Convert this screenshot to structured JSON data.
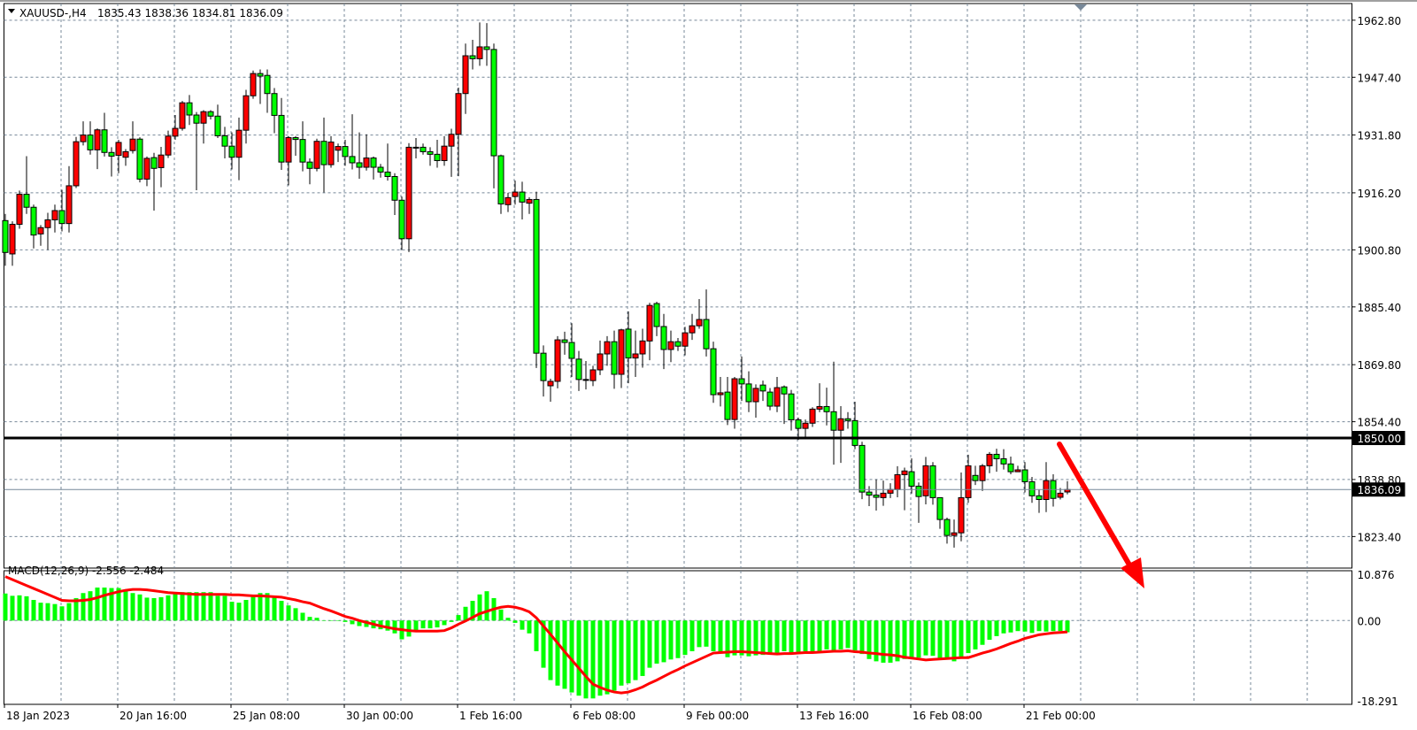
{
  "header": {
    "symbol": "XAUUSD-,H4",
    "ohlc": "1835.43 1838.36 1834.81 1836.09"
  },
  "indicator": {
    "label": "MACD(12,26,9) -2.556 -2.484"
  },
  "colors": {
    "bull_candle": "#ff0000",
    "bear_candle": "#00ff00",
    "macd_histogram": "#00ff00",
    "signal_line": "#ff0000",
    "grid": "#778899",
    "level_line": "#000000",
    "bid_line": "#778899",
    "arrow": "#ff0000"
  },
  "chart_data": [
    {
      "type": "candlestick",
      "symbol": "XAUUSD-",
      "timeframe": "H4",
      "grid": true,
      "y_ticks": [
        "1962.80",
        "1947.40",
        "1931.80",
        "1916.20",
        "1900.80",
        "1885.40",
        "1869.80",
        "1854.40",
        "1838.80",
        "1823.40"
      ],
      "x_ticks": [
        "18 Jan 2023",
        "20 Jan 16:00",
        "25 Jan 08:00",
        "30 Jan 00:00",
        "1 Feb 16:00",
        "6 Feb 08:00",
        "9 Feb 00:00",
        "13 Feb 16:00",
        "16 Feb 08:00",
        "21 Feb 00:00"
      ],
      "horizontal_line": {
        "value": 1850.0,
        "label": "1850.00"
      },
      "bid_line": {
        "value": 1836.09,
        "label": "1836.09"
      },
      "annotation": "red downward arrow starting near 1850 level after last candle",
      "ohlc": [
        [
          1908.7,
          1910.5,
          1896.5,
          1900.1
        ],
        [
          1899.7,
          1908.5,
          1896.5,
          1907.7
        ],
        [
          1907.7,
          1916.8,
          1906.5,
          1915.8
        ],
        [
          1915.8,
          1926.1,
          1910.5,
          1912.3
        ],
        [
          1912.3,
          1913.0,
          1901.2,
          1904.8
        ],
        [
          1905.1,
          1907.5,
          1901.9,
          1906.8
        ],
        [
          1906.8,
          1910.8,
          1900.8,
          1908.9
        ],
        [
          1908.9,
          1913.0,
          1905.5,
          1911.4
        ],
        [
          1911.4,
          1917.0,
          1905.8,
          1907.9
        ],
        [
          1907.9,
          1923.4,
          1905.5,
          1918.1
        ],
        [
          1918.1,
          1931.3,
          1917.5,
          1930.0
        ],
        [
          1930.0,
          1935.5,
          1929.0,
          1931.8
        ],
        [
          1931.8,
          1935.5,
          1926.5,
          1927.8
        ],
        [
          1927.8,
          1933.6,
          1922.6,
          1933.2
        ],
        [
          1933.2,
          1937.8,
          1926.0,
          1927.1
        ],
        [
          1927.1,
          1928.5,
          1920.6,
          1926.1
        ],
        [
          1926.3,
          1930.5,
          1921.5,
          1929.8
        ],
        [
          1925.8,
          1928.0,
          1923.5,
          1927.3
        ],
        [
          1927.6,
          1935.5,
          1926.8,
          1930.7
        ],
        [
          1930.7,
          1931.2,
          1919.0,
          1919.9
        ],
        [
          1919.9,
          1926.0,
          1918.0,
          1925.5
        ],
        [
          1925.7,
          1927.0,
          1911.4,
          1922.8
        ],
        [
          1923.0,
          1928.6,
          1917.7,
          1926.4
        ],
        [
          1926.4,
          1933.0,
          1925.6,
          1931.5
        ],
        [
          1931.5,
          1937.2,
          1930.5,
          1933.6
        ],
        [
          1933.6,
          1941.0,
          1933.0,
          1940.5
        ],
        [
          1940.5,
          1942.6,
          1934.5,
          1937.2
        ],
        [
          1937.2,
          1938.0,
          1916.9,
          1935.0
        ],
        [
          1935.0,
          1938.5,
          1929.5,
          1938.1
        ],
        [
          1938.1,
          1938.5,
          1936.0,
          1936.9
        ],
        [
          1936.9,
          1940.0,
          1931.0,
          1931.6
        ],
        [
          1931.6,
          1934.0,
          1925.5,
          1928.8
        ],
        [
          1928.8,
          1932.5,
          1922.5,
          1925.8
        ],
        [
          1925.8,
          1936.5,
          1919.6,
          1933.1
        ],
        [
          1933.1,
          1944.0,
          1929.5,
          1942.4
        ],
        [
          1942.4,
          1949.2,
          1941.6,
          1948.4
        ],
        [
          1948.4,
          1949.5,
          1940.2,
          1947.7
        ],
        [
          1947.9,
          1949.5,
          1937.8,
          1943.0
        ],
        [
          1943.0,
          1944.5,
          1932.3,
          1937.1
        ],
        [
          1937.1,
          1941.8,
          1922.4,
          1924.5
        ],
        [
          1924.5,
          1931.5,
          1918.2,
          1931.1
        ],
        [
          1931.1,
          1931.5,
          1926.2,
          1930.6
        ],
        [
          1930.6,
          1935.5,
          1922.0,
          1924.5
        ],
        [
          1924.5,
          1925.5,
          1918.5,
          1922.8
        ],
        [
          1922.8,
          1930.8,
          1922.0,
          1930.1
        ],
        [
          1930.1,
          1936.5,
          1916.3,
          1923.8
        ],
        [
          1923.8,
          1931.5,
          1923.0,
          1929.9
        ],
        [
          1927.7,
          1929.5,
          1924.5,
          1928.7
        ],
        [
          1928.7,
          1930.5,
          1923.5,
          1926.0
        ],
        [
          1926.0,
          1937.4,
          1922.5,
          1924.3
        ],
        [
          1924.3,
          1932.5,
          1920.0,
          1923.1
        ],
        [
          1923.1,
          1932.0,
          1922.2,
          1925.6
        ],
        [
          1925.6,
          1926.0,
          1919.8,
          1923.1
        ],
        [
          1923.1,
          1924.0,
          1920.3,
          1921.8
        ],
        [
          1921.8,
          1929.5,
          1919.5,
          1920.6
        ],
        [
          1920.6,
          1921.5,
          1910.2,
          1914.2
        ],
        [
          1914.2,
          1915.2,
          1900.8,
          1903.8
        ],
        [
          1903.8,
          1929.6,
          1900.2,
          1928.5
        ],
        [
          1928.5,
          1931.0,
          1925.5,
          1928.5
        ],
        [
          1928.5,
          1929.5,
          1926.5,
          1927.3
        ],
        [
          1927.3,
          1928.5,
          1923.5,
          1926.6
        ],
        [
          1926.6,
          1930.5,
          1923.0,
          1924.9
        ],
        [
          1924.9,
          1931.5,
          1923.5,
          1928.8
        ],
        [
          1928.8,
          1933.5,
          1920.5,
          1932.0
        ],
        [
          1932.0,
          1944.6,
          1920.7,
          1943.0
        ],
        [
          1943.0,
          1956.5,
          1937.5,
          1953.2
        ],
        [
          1953.2,
          1957.5,
          1949.5,
          1952.4
        ],
        [
          1952.4,
          1962.2,
          1950.5,
          1955.6
        ],
        [
          1955.6,
          1962.0,
          1950.5,
          1954.9
        ],
        [
          1954.9,
          1956.5,
          1917.4,
          1926.2
        ],
        [
          1926.2,
          1926.5,
          1910.5,
          1913.2
        ],
        [
          1913.0,
          1916.2,
          1911.0,
          1914.9
        ],
        [
          1915.2,
          1919.5,
          1913.0,
          1916.4
        ],
        [
          1916.4,
          1919.2,
          1909.0,
          1913.7
        ],
        [
          1913.4,
          1915.0,
          1910.5,
          1914.4
        ],
        [
          1914.4,
          1916.5,
          1868.9,
          1872.9
        ],
        [
          1872.9,
          1875.0,
          1861.2,
          1865.5
        ],
        [
          1864.1,
          1866.0,
          1859.8,
          1865.3
        ],
        [
          1865.3,
          1877.5,
          1863.4,
          1876.5
        ],
        [
          1876.5,
          1878.7,
          1872.5,
          1875.8
        ],
        [
          1875.8,
          1881.0,
          1866.5,
          1871.5
        ],
        [
          1871.3,
          1873.5,
          1862.7,
          1865.8
        ],
        [
          1865.8,
          1870.8,
          1863.1,
          1865.8
        ],
        [
          1865.5,
          1869.5,
          1864.0,
          1868.4
        ],
        [
          1868.4,
          1876.3,
          1867.0,
          1872.7
        ],
        [
          1872.7,
          1877.5,
          1869.5,
          1876.0
        ],
        [
          1876.0,
          1879.0,
          1863.3,
          1867.2
        ],
        [
          1867.2,
          1879.5,
          1863.5,
          1879.2
        ],
        [
          1879.4,
          1884.2,
          1864.8,
          1871.6
        ],
        [
          1871.6,
          1879.0,
          1866.5,
          1872.7
        ],
        [
          1872.7,
          1879.5,
          1869.0,
          1876.2
        ],
        [
          1876.2,
          1886.5,
          1871.0,
          1885.8
        ],
        [
          1886.3,
          1886.8,
          1877.5,
          1880.1
        ],
        [
          1880.1,
          1883.5,
          1868.6,
          1873.9
        ],
        [
          1873.9,
          1879.0,
          1870.5,
          1876.0
        ],
        [
          1876.0,
          1877.0,
          1873.5,
          1874.8
        ],
        [
          1874.8,
          1880.0,
          1872.3,
          1878.4
        ],
        [
          1878.4,
          1883.5,
          1876.5,
          1880.3
        ],
        [
          1880.3,
          1887.5,
          1879.5,
          1882.0
        ],
        [
          1882.0,
          1890.1,
          1872.0,
          1874.1
        ],
        [
          1874.1,
          1876.0,
          1859.5,
          1861.7
        ],
        [
          1861.7,
          1866.5,
          1858.5,
          1862.2
        ],
        [
          1862.4,
          1866.5,
          1853.5,
          1855.0
        ],
        [
          1855.0,
          1866.5,
          1852.5,
          1866.0
        ],
        [
          1866.0,
          1872.0,
          1860.0,
          1864.6
        ],
        [
          1864.6,
          1868.0,
          1857.0,
          1859.8
        ],
        [
          1859.8,
          1864.5,
          1855.5,
          1863.4
        ],
        [
          1864.3,
          1865.5,
          1860.0,
          1862.7
        ],
        [
          1862.4,
          1863.5,
          1857.5,
          1858.6
        ],
        [
          1858.6,
          1866.5,
          1857.0,
          1863.6
        ],
        [
          1863.8,
          1864.2,
          1853.8,
          1861.9
        ],
        [
          1861.9,
          1863.0,
          1852.0,
          1854.9
        ],
        [
          1854.9,
          1855.5,
          1849.5,
          1852.6
        ],
        [
          1852.6,
          1855.0,
          1850.3,
          1854.0
        ],
        [
          1854.0,
          1858.3,
          1853.0,
          1857.8
        ],
        [
          1857.8,
          1864.8,
          1857.0,
          1858.5
        ],
        [
          1858.5,
          1863.6,
          1853.4,
          1857.1
        ],
        [
          1857.1,
          1870.6,
          1842.8,
          1852.1
        ],
        [
          1852.1,
          1858.6,
          1843.3,
          1855.2
        ],
        [
          1855.2,
          1857.0,
          1852.5,
          1854.7
        ],
        [
          1854.7,
          1859.8,
          1847.0,
          1848.0
        ],
        [
          1848.0,
          1849.0,
          1833.5,
          1835.4
        ],
        [
          1835.4,
          1837.0,
          1831.6,
          1834.6
        ],
        [
          1834.6,
          1838.8,
          1830.4,
          1834.0
        ],
        [
          1833.9,
          1838.5,
          1831.7,
          1835.1
        ],
        [
          1835.1,
          1837.8,
          1833.8,
          1836.1
        ],
        [
          1836.1,
          1842.4,
          1834.0,
          1840.1
        ],
        [
          1840.1,
          1842.0,
          1830.5,
          1841.1
        ],
        [
          1840.9,
          1844.5,
          1835.0,
          1837.0
        ],
        [
          1837.0,
          1838.0,
          1827.1,
          1834.2
        ],
        [
          1834.4,
          1844.9,
          1832.1,
          1842.5
        ],
        [
          1842.5,
          1843.5,
          1832.0,
          1833.9
        ],
        [
          1833.9,
          1834.0,
          1825.5,
          1828.0
        ],
        [
          1828.0,
          1828.5,
          1821.5,
          1823.7
        ],
        [
          1823.7,
          1828.0,
          1820.4,
          1824.4
        ],
        [
          1824.4,
          1840.7,
          1822.1,
          1833.9
        ],
        [
          1833.9,
          1845.5,
          1832.5,
          1842.5
        ],
        [
          1839.9,
          1842.5,
          1837.3,
          1838.5
        ],
        [
          1838.5,
          1843.0,
          1835.7,
          1842.5
        ],
        [
          1842.5,
          1846.2,
          1840.5,
          1845.6
        ],
        [
          1845.6,
          1847.1,
          1840.9,
          1844.4
        ],
        [
          1844.4,
          1847.0,
          1841.5,
          1843.0
        ],
        [
          1843.0,
          1845.0,
          1840.2,
          1840.9
        ],
        [
          1840.9,
          1842.5,
          1840.9,
          1841.4
        ],
        [
          1841.4,
          1843.5,
          1835.3,
          1838.2
        ],
        [
          1838.2,
          1839.5,
          1832.5,
          1834.4
        ],
        [
          1834.4,
          1836.0,
          1829.8,
          1833.4
        ],
        [
          1833.4,
          1843.5,
          1830.0,
          1838.5
        ],
        [
          1838.5,
          1840.2,
          1831.5,
          1833.7
        ],
        [
          1834.0,
          1836.5,
          1833.4,
          1835.1
        ],
        [
          1835.43,
          1838.36,
          1834.81,
          1836.09
        ]
      ]
    },
    {
      "type": "bar+line",
      "name": "MACD(12,26,9)",
      "y_ticks": [
        "10.876",
        "0.00",
        "-18.291"
      ],
      "ylim": [
        -18.291,
        10.876
      ],
      "macd": [
        5.9,
        5.4,
        5.5,
        5.3,
        4.5,
        3.9,
        3.8,
        3.6,
        3.1,
        3.8,
        4.9,
        6.0,
        6.4,
        7.2,
        7.2,
        7.1,
        7.1,
        6.7,
        6.0,
        5.7,
        5.0,
        4.9,
        5.1,
        5.5,
        6.2,
        6.2,
        6.2,
        6.2,
        6.2,
        6.2,
        5.4,
        5.4,
        4.1,
        3.9,
        4.5,
        5.2,
        6.0,
        6.0,
        5.2,
        4.3,
        3.3,
        2.7,
        1.7,
        0.8,
        0.6,
        0.05,
        0,
        -0.1,
        -0.3,
        -0.8,
        -1.2,
        -1.4,
        -1.7,
        -1.9,
        -2.2,
        -2.8,
        -4.1,
        -3.5,
        -2.2,
        -1.7,
        -1.7,
        -1.5,
        -1.0,
        -0.3,
        1.2,
        3.0,
        4.3,
        5.7,
        6.4,
        4.9,
        2.4,
        0.6,
        -0.5,
        -2.0,
        -2.8,
        -6.7,
        -10.3,
        -13.0,
        -14.2,
        -14.9,
        -15.7,
        -16.4,
        -17.0,
        -17.0,
        -16.4,
        -16.1,
        -15.3,
        -14.2,
        -13.7,
        -13.0,
        -12.1,
        -10.3,
        -9.4,
        -9.1,
        -8.5,
        -8.2,
        -7.5,
        -6.7,
        -5.8,
        -5.7,
        -6.7,
        -7.1,
        -8.0,
        -7.6,
        -7.6,
        -7.8,
        -7.6,
        -7.5,
        -7.1,
        -7.2,
        -6.7,
        -7.0,
        -7.0,
        -6.7,
        -6.8,
        -6.7,
        -6.3,
        -6.5,
        -6.3,
        -6.0,
        -6.5,
        -7.3,
        -8.4,
        -8.9,
        -9.2,
        -9.2,
        -8.9,
        -8.4,
        -8.1,
        -8.1,
        -7.6,
        -7.7,
        -8.3,
        -8.4,
        -8.9,
        -8.3,
        -7.1,
        -6.3,
        -5.3,
        -4.2,
        -3.4,
        -2.8,
        -2.6,
        -2.3,
        -2.4,
        -2.7,
        -2.3,
        -2.4,
        -2.3,
        -2.3,
        -2.556
      ],
      "signal": [
        9.6,
        8.95,
        8.3,
        7.65,
        7.0,
        6.35,
        5.7,
        5.05,
        4.4,
        4.3,
        4.3,
        4.4,
        4.6,
        5.0,
        5.5,
        5.9,
        6.3,
        6.6,
        6.8,
        6.8,
        6.7,
        6.5,
        6.3,
        6.1,
        6.0,
        5.9,
        5.8,
        5.7,
        5.7,
        5.7,
        5.7,
        5.7,
        5.6,
        5.6,
        5.5,
        5.4,
        5.4,
        5.3,
        5.2,
        5.1,
        4.8,
        4.5,
        4.1,
        3.8,
        3.2,
        2.6,
        2.1,
        1.5,
        0.9,
        0.5,
        0.0,
        -0.4,
        -0.8,
        -1.2,
        -1.5,
        -1.8,
        -2.0,
        -2.2,
        -2.3,
        -2.3,
        -2.3,
        -2.3,
        -2.2,
        -1.6,
        -0.8,
        -0.1,
        0.7,
        1.5,
        2.0,
        2.5,
        2.9,
        3.1,
        2.9,
        2.5,
        1.9,
        0.6,
        -1.2,
        -3.0,
        -4.9,
        -6.8,
        -8.6,
        -10.4,
        -12.2,
        -13.9,
        -14.6,
        -15.2,
        -15.6,
        -15.8,
        -15.6,
        -15.1,
        -14.5,
        -13.7,
        -13.0,
        -12.2,
        -11.4,
        -10.7,
        -9.9,
        -9.2,
        -8.5,
        -7.8,
        -7.1,
        -7.0,
        -6.9,
        -6.8,
        -6.8,
        -6.9,
        -7.0,
        -7.1,
        -7.2,
        -7.3,
        -7.2,
        -7.2,
        -7.1,
        -7.0,
        -7.0,
        -6.9,
        -6.8,
        -6.7,
        -6.7,
        -6.6,
        -6.8,
        -6.9,
        -7.1,
        -7.2,
        -7.4,
        -7.5,
        -7.7,
        -8.0,
        -8.2,
        -8.4,
        -8.6,
        -8.5,
        -8.4,
        -8.3,
        -8.2,
        -8.1,
        -8.1,
        -7.6,
        -7.1,
        -6.7,
        -6.2,
        -5.6,
        -5.0,
        -4.5,
        -3.9,
        -3.5,
        -3.1,
        -2.9,
        -2.7,
        -2.6,
        -2.484
      ]
    }
  ]
}
